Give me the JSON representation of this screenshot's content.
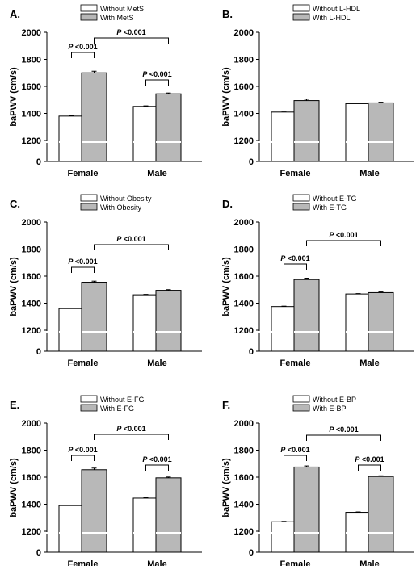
{
  "colors": {
    "without": "#ffffff",
    "with": "#b8b8b8",
    "stroke": "#000000",
    "break_line": "#ffffff"
  },
  "chart_data": [
    {
      "type": "bar",
      "panel": "A.",
      "categories": [
        "Female",
        "Male"
      ],
      "series": [
        {
          "name": "Without MetS",
          "values": [
            1380,
            1452
          ]
        },
        {
          "name": "With MetS",
          "values": [
            1700,
            1545
          ]
        }
      ],
      "error": [
        [
          3,
          4
        ],
        [
          12,
          6
        ]
      ],
      "ylabel": "baPWV (cm/s)",
      "ylim": [
        0,
        2000
      ],
      "yticks": [
        "0",
        "1200",
        "1400",
        "1600",
        "1800",
        "2000"
      ],
      "axis_break": true,
      "significance": [
        {
          "label": "P <0.001",
          "between": "within-Female"
        },
        {
          "label": "P <0.001",
          "between": "within-Male"
        },
        {
          "label": "P <0.001",
          "between": "Female-With vs Male-With"
        }
      ]
    },
    {
      "type": "bar",
      "panel": "B.",
      "categories": [
        "Female",
        "Male"
      ],
      "series": [
        {
          "name": "Without L-HDL",
          "values": [
            1410,
            1472
          ]
        },
        {
          "name": "With L-HDL",
          "values": [
            1495,
            1478
          ]
        }
      ],
      "error": [
        [
          6,
          4
        ],
        [
          10,
          5
        ]
      ],
      "ylabel": "baPWV (cm/s)",
      "ylim": [
        0,
        2000
      ],
      "yticks": [
        "0",
        "1200",
        "1400",
        "1600",
        "1800",
        "2000"
      ],
      "axis_break": true,
      "significance": []
    },
    {
      "type": "bar",
      "panel": "C.",
      "categories": [
        "Female",
        "Male"
      ],
      "series": [
        {
          "name": "Without Obesity",
          "values": [
            1360,
            1462
          ]
        },
        {
          "name": "With Obesity",
          "values": [
            1555,
            1495
          ]
        }
      ],
      "error": [
        [
          4,
          3
        ],
        [
          8,
          5
        ]
      ],
      "ylabel": "baPWV (cm/s)",
      "ylim": [
        0,
        2000
      ],
      "yticks": [
        "0",
        "1200",
        "1400",
        "1600",
        "1800",
        "2000"
      ],
      "axis_break": true,
      "significance": [
        {
          "label": "P <0.001",
          "between": "within-Female"
        },
        {
          "label": "P <0.001",
          "between": "Female-With vs Male-With"
        }
      ]
    },
    {
      "type": "bar",
      "panel": "D.",
      "categories": [
        "Female",
        "Male"
      ],
      "series": [
        {
          "name": "Without E-TG",
          "values": [
            1375,
            1468
          ]
        },
        {
          "name": "With E-TG",
          "values": [
            1575,
            1478
          ]
        }
      ],
      "error": [
        [
          3,
          3
        ],
        [
          10,
          5
        ]
      ],
      "ylabel": "baPWV (cm/s)",
      "ylim": [
        0,
        2000
      ],
      "yticks": [
        "0",
        "1200",
        "1400",
        "1600",
        "1800",
        "2000"
      ],
      "axis_break": true,
      "significance": [
        {
          "label": "P <0.001",
          "between": "within-Female"
        },
        {
          "label": "P <0.001",
          "between": "Female-With vs Male-With"
        }
      ]
    },
    {
      "type": "bar",
      "panel": "E.",
      "categories": [
        "Female",
        "Male"
      ],
      "series": [
        {
          "name": "Without E-FG",
          "values": [
            1390,
            1445
          ]
        },
        {
          "name": "With E-FG",
          "values": [
            1655,
            1595
          ]
        }
      ],
      "error": [
        [
          4,
          3
        ],
        [
          12,
          6
        ]
      ],
      "ylabel": "baPWV (cm/s)",
      "ylim": [
        0,
        2000
      ],
      "yticks": [
        "0",
        "1200",
        "1400",
        "1600",
        "1800",
        "2000"
      ],
      "axis_break": true,
      "significance": [
        {
          "label": "P <0.001",
          "between": "within-Female"
        },
        {
          "label": "P <0.001",
          "between": "within-Male"
        },
        {
          "label": "P <0.001",
          "between": "Female-With vs Male-With"
        }
      ]
    },
    {
      "type": "bar",
      "panel": "F.",
      "categories": [
        "Female",
        "Male"
      ],
      "series": [
        {
          "name": "Without E-BP",
          "values": [
            1270,
            1340
          ]
        },
        {
          "name": "With E-BP",
          "values": [
            1675,
            1605
          ]
        }
      ],
      "error": [
        [
          3,
          3
        ],
        [
          8,
          5
        ]
      ],
      "ylabel": "baPWV (cm/s)",
      "ylim": [
        0,
        2000
      ],
      "yticks": [
        "0",
        "1200",
        "1400",
        "1600",
        "1800",
        "2000"
      ],
      "axis_break": true,
      "significance": [
        {
          "label": "P <0.001",
          "between": "within-Female"
        },
        {
          "label": "P <0.001",
          "between": "within-Male"
        },
        {
          "label": "P <0.001",
          "between": "Female-With vs Male-With"
        }
      ]
    }
  ]
}
